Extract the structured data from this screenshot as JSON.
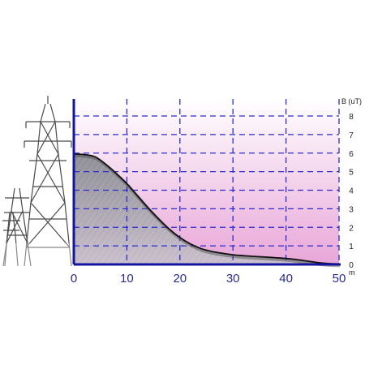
{
  "chart_data": {
    "type": "area",
    "title": "",
    "xlabel": "m",
    "ylabel": "B (uT)",
    "xlim": [
      0,
      50
    ],
    "ylim": [
      0,
      8
    ],
    "x_ticks": [
      "0",
      "10",
      "20",
      "30",
      "40",
      "50"
    ],
    "y_ticks": [
      "0",
      "1",
      "2",
      "3",
      "4",
      "5",
      "6",
      "7",
      "8"
    ],
    "grid": true,
    "x": [
      0,
      2,
      4,
      6,
      8,
      10,
      12,
      14,
      16,
      18,
      20,
      22,
      24,
      26,
      28,
      30,
      32,
      34,
      36,
      38,
      40,
      42,
      44,
      46,
      48,
      50
    ],
    "series": [
      {
        "values": [
          5.95,
          5.92,
          5.8,
          5.4,
          4.9,
          4.35,
          3.7,
          3.05,
          2.45,
          1.9,
          1.45,
          1.1,
          0.85,
          0.7,
          0.6,
          0.52,
          0.47,
          0.43,
          0.4,
          0.36,
          0.32,
          0.26,
          0.18,
          0.1,
          0.05,
          0.03
        ]
      }
    ],
    "colors": {
      "axis": "#1414a0",
      "grid": "#2b2bd0",
      "curve": "#111111",
      "area": "#9a9aa0",
      "plot_bg_top": "#ffffff",
      "plot_bg_bottom": "#e8a6d8"
    }
  },
  "decor": {
    "tower_icon": "transmission-tower-icon",
    "tower_color": "#555555"
  }
}
